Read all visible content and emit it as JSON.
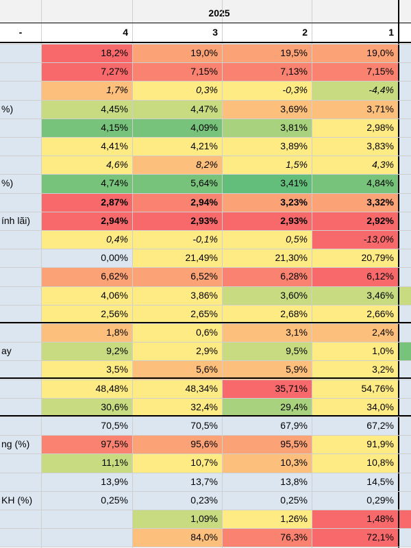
{
  "header": {
    "year": "2025",
    "dash": "-",
    "quarters": [
      "4",
      "3",
      "2",
      "1"
    ]
  },
  "colors": {
    "label_bg": "#dce6f1",
    "red": "#f8696b",
    "orange_red": "#f98370",
    "orange": "#fba276",
    "light_orange": "#fdc07c",
    "yellow": "#ffeb84",
    "yellow_green": "#c9db81",
    "light_green": "#a9d27f",
    "green": "#78c37c",
    "strong_green": "#63be7b"
  },
  "rows": [
    {
      "label": "",
      "values": [
        "18,2%",
        "19,0%",
        "19,5%",
        "19,0%"
      ],
      "fills": [
        "red",
        "orange",
        "orange",
        "orange"
      ],
      "italic": false,
      "bold": false
    },
    {
      "label": "",
      "values": [
        "7,27%",
        "7,15%",
        "7,13%",
        "7,15%"
      ],
      "fills": [
        "red",
        "orange_red",
        "orange_red",
        "orange_red"
      ],
      "italic": false,
      "bold": false
    },
    {
      "label": "",
      "values": [
        "1,7%",
        "0,3%",
        "-0,3%",
        "-4,4%"
      ],
      "fills": [
        "light_orange",
        "yellow",
        "yellow",
        "yellow_green"
      ],
      "italic": true,
      "bold": false
    },
    {
      "label": "%)",
      "values": [
        "4,45%",
        "4,47%",
        "3,69%",
        "3,71%"
      ],
      "fills": [
        "yellow_green",
        "yellow_green",
        "light_orange",
        "light_orange"
      ],
      "italic": false,
      "bold": false
    },
    {
      "label": "",
      "values": [
        "4,15%",
        "4,09%",
        "3,81%",
        "2,98%"
      ],
      "fills": [
        "green",
        "green",
        "light_green",
        "yellow"
      ],
      "italic": false,
      "bold": false
    },
    {
      "label": "",
      "values": [
        "4,41%",
        "4,21%",
        "3,89%",
        "3,83%"
      ],
      "fills": [
        "yellow",
        "yellow",
        "yellow",
        "yellow"
      ],
      "italic": false,
      "bold": false
    },
    {
      "label": "",
      "values": [
        "4,6%",
        "8,2%",
        "1,5%",
        "4,3%"
      ],
      "fills": [
        "yellow",
        "light_orange",
        "yellow",
        "yellow"
      ],
      "italic": true,
      "bold": false
    },
    {
      "label": "%)",
      "values": [
        "4,74%",
        "5,64%",
        "3,41%",
        "4,84%"
      ],
      "fills": [
        "green",
        "green",
        "strong_green",
        "green"
      ],
      "italic": false,
      "bold": false
    },
    {
      "label": "",
      "values": [
        "2,87%",
        "2,94%",
        "3,23%",
        "3,32%"
      ],
      "fills": [
        "red",
        "orange_red",
        "orange",
        "orange"
      ],
      "italic": false,
      "bold": true
    },
    {
      "label": "ính lãi)",
      "values": [
        "2,94%",
        "2,93%",
        "2,93%",
        "2,92%"
      ],
      "fills": [
        "red",
        "red",
        "red",
        "red"
      ],
      "italic": false,
      "bold": true
    },
    {
      "label": "",
      "values": [
        "0,4%",
        "-0,1%",
        "0,5%",
        "-13,0%"
      ],
      "fills": [
        "yellow",
        "yellow",
        "yellow",
        "red"
      ],
      "italic": true,
      "bold": false
    },
    {
      "label": "",
      "values": [
        "0,00%",
        "21,49%",
        "21,30%",
        "20,79%"
      ],
      "fills": [
        "label_bg",
        "yellow",
        "yellow",
        "yellow"
      ],
      "italic": false,
      "bold": false
    },
    {
      "label": "",
      "values": [
        "6,62%",
        "6,52%",
        "6,28%",
        "6,12%"
      ],
      "fills": [
        "orange",
        "orange",
        "orange_red",
        "red"
      ],
      "italic": false,
      "bold": false
    },
    {
      "label": "",
      "values": [
        "4,06%",
        "3,86%",
        "3,60%",
        "3,46%"
      ],
      "fills": [
        "yellow",
        "yellow",
        "yellow_green",
        "yellow_green"
      ],
      "italic": false,
      "bold": false
    },
    {
      "label": "",
      "values": [
        "2,56%",
        "2,65%",
        "2,68%",
        "2,66%"
      ],
      "fills": [
        "yellow",
        "yellow",
        "yellow",
        "yellow"
      ],
      "italic": false,
      "bold": false
    },
    {
      "label": "",
      "values": [
        "1,8%",
        "0,6%",
        "3,1%",
        "2,4%"
      ],
      "fills": [
        "light_orange",
        "yellow",
        "light_orange",
        "light_orange"
      ],
      "italic": false,
      "bold": false
    },
    {
      "label": "ay",
      "values": [
        "9,2%",
        "2,9%",
        "9,5%",
        "1,0%"
      ],
      "fills": [
        "yellow_green",
        "yellow",
        "yellow_green",
        "yellow"
      ],
      "italic": false,
      "bold": false
    },
    {
      "label": "",
      "values": [
        "3,5%",
        "5,6%",
        "5,9%",
        "3,2%"
      ],
      "fills": [
        "yellow",
        "light_orange",
        "light_orange",
        "yellow"
      ],
      "italic": false,
      "bold": false
    },
    {
      "label": "",
      "values": [
        "48,48%",
        "48,34%",
        "35,71%",
        "54,76%"
      ],
      "fills": [
        "yellow",
        "yellow",
        "red",
        "yellow"
      ],
      "italic": false,
      "bold": false
    },
    {
      "label": "",
      "values": [
        "30,6%",
        "32,4%",
        "29,4%",
        "34,0%"
      ],
      "fills": [
        "yellow_green",
        "yellow",
        "light_green",
        "yellow"
      ],
      "italic": false,
      "bold": false
    },
    {
      "label": "",
      "values": [
        "70,5%",
        "70,5%",
        "67,9%",
        "67,2%"
      ],
      "fills": [
        "label_bg",
        "label_bg",
        "label_bg",
        "label_bg"
      ],
      "italic": false,
      "bold": false
    },
    {
      "label": "ng (%)",
      "values": [
        "97,5%",
        "95,6%",
        "95,5%",
        "91,9%"
      ],
      "fills": [
        "orange_red",
        "orange",
        "orange",
        "yellow"
      ],
      "italic": false,
      "bold": false
    },
    {
      "label": "",
      "values": [
        "11,1%",
        "10,7%",
        "10,3%",
        "10,8%"
      ],
      "fills": [
        "yellow_green",
        "yellow",
        "light_orange",
        "yellow"
      ],
      "italic": false,
      "bold": false
    },
    {
      "label": "",
      "values": [
        "13,9%",
        "13,7%",
        "13,8%",
        "14,5%"
      ],
      "fills": [
        "label_bg",
        "label_bg",
        "label_bg",
        "label_bg"
      ],
      "italic": false,
      "bold": false
    },
    {
      "label": "KH (%)",
      "values": [
        "0,25%",
        "0,23%",
        "0,25%",
        "0,29%"
      ],
      "fills": [
        "label_bg",
        "label_bg",
        "label_bg",
        "label_bg"
      ],
      "italic": false,
      "bold": false
    },
    {
      "label": "",
      "values": [
        "",
        "1,09%",
        "1,26%",
        "1,48%"
      ],
      "fills": [
        "label_bg",
        "yellow_green",
        "yellow",
        "red"
      ],
      "italic": false,
      "bold": false
    },
    {
      "label": "",
      "values": [
        "",
        "84,0%",
        "76,3%",
        "72,1%"
      ],
      "fills": [
        "label_bg",
        "light_orange",
        "orange_red",
        "red"
      ],
      "italic": false,
      "bold": false
    }
  ],
  "edge_fills": [
    "label_bg",
    "label_bg",
    "label_bg",
    "label_bg",
    "label_bg",
    "label_bg",
    "label_bg",
    "label_bg",
    "label_bg",
    "label_bg",
    "label_bg",
    "label_bg",
    "label_bg",
    "yellow_green",
    "label_bg",
    "label_bg",
    "green",
    "label_bg",
    "label_bg",
    "label_bg",
    "label_bg",
    "label_bg",
    "label_bg",
    "label_bg",
    "label_bg",
    "red",
    "label_bg"
  ]
}
